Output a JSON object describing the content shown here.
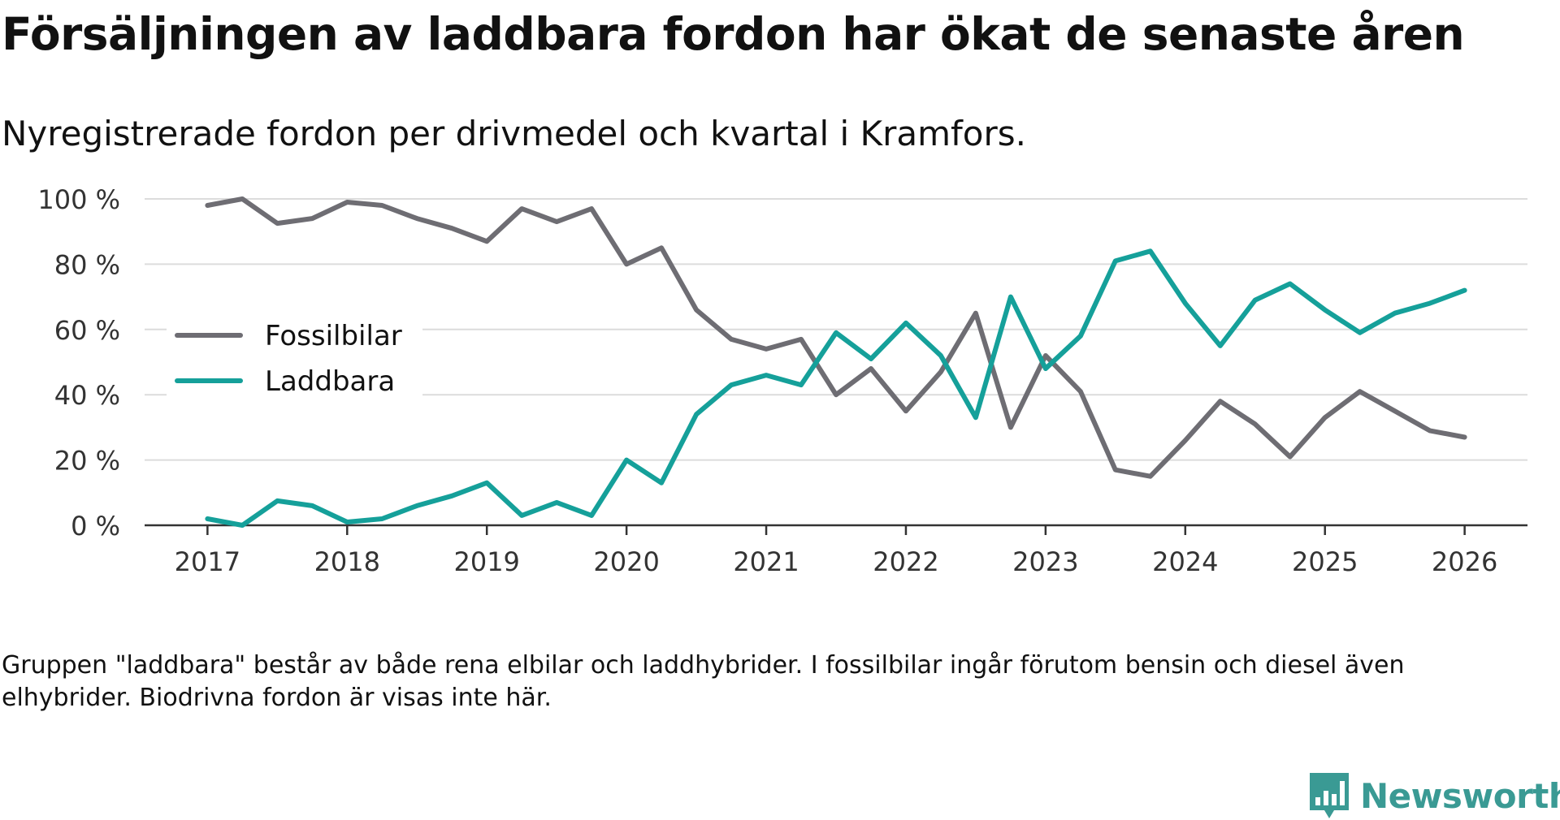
{
  "title": "Försäljningen av laddbara fordon har ökat de senaste åren",
  "subtitle": "Nyregistrerade fordon per drivmedel och kvartal i Kramfors.",
  "footnote": "Gruppen \"laddbara\" består av både rena elbilar och laddhybrider. I fossilbilar ingår förutom bensin och diesel även elhybrider. Biodrivna fordon är visas inte här.",
  "brand": {
    "name": "Newsworthy",
    "logo_icon": "newsworthy-logo-icon",
    "color": "#3a9a94"
  },
  "chart_data": {
    "type": "line",
    "title": "Försäljningen av laddbara fordon har ökat de senaste åren",
    "xlabel": "",
    "ylabel": "",
    "x": [
      2017.0,
      2017.25,
      2017.5,
      2017.75,
      2018.0,
      2018.25,
      2018.5,
      2018.75,
      2019.0,
      2019.25,
      2019.5,
      2019.75,
      2020.0,
      2020.25,
      2020.5,
      2020.75,
      2021.0,
      2021.25,
      2021.5,
      2021.75,
      2022.0,
      2022.25,
      2022.5,
      2022.75,
      2023.0,
      2023.25,
      2023.5,
      2023.75,
      2024.0,
      2024.25,
      2024.5,
      2024.75,
      2025.0,
      2025.25,
      2025.5,
      2025.75,
      2026.0
    ],
    "xticks": [
      2017,
      2018,
      2019,
      2020,
      2021,
      2022,
      2023,
      2024,
      2025,
      2026
    ],
    "xtick_labels": [
      "2017",
      "2018",
      "2019",
      "2020",
      "2021",
      "2022",
      "2023",
      "2024",
      "2025",
      "2026"
    ],
    "xlim": [
      2016.55,
      2026.45
    ],
    "ylim": [
      0,
      100
    ],
    "yticks": [
      0,
      20,
      40,
      60,
      80,
      100
    ],
    "ytick_labels": [
      "0 %",
      "20 %",
      "40 %",
      "60 %",
      "80 %",
      "100 %"
    ],
    "grid": true,
    "legend_position": "left-middle",
    "series": [
      {
        "name": "Fossilbilar",
        "color": "#6e6d73",
        "values": [
          98,
          100,
          92.5,
          94,
          99,
          98,
          94,
          91,
          87,
          97,
          93,
          97,
          80,
          85,
          66,
          57,
          54,
          57,
          40,
          48,
          35,
          47,
          65,
          30,
          52,
          41,
          17,
          15,
          26,
          38,
          31,
          21,
          33,
          41,
          35,
          29,
          27
        ]
      },
      {
        "name": "Laddbara",
        "color": "#15a09a",
        "values": [
          2,
          0,
          7.5,
          6,
          1,
          2,
          6,
          9,
          13,
          3,
          7,
          3,
          20,
          13,
          34,
          43,
          46,
          43,
          59,
          51,
          62,
          52,
          33,
          70,
          48,
          58,
          81,
          84,
          68,
          55,
          69,
          74,
          66,
          59,
          65,
          68,
          72
        ]
      }
    ]
  }
}
